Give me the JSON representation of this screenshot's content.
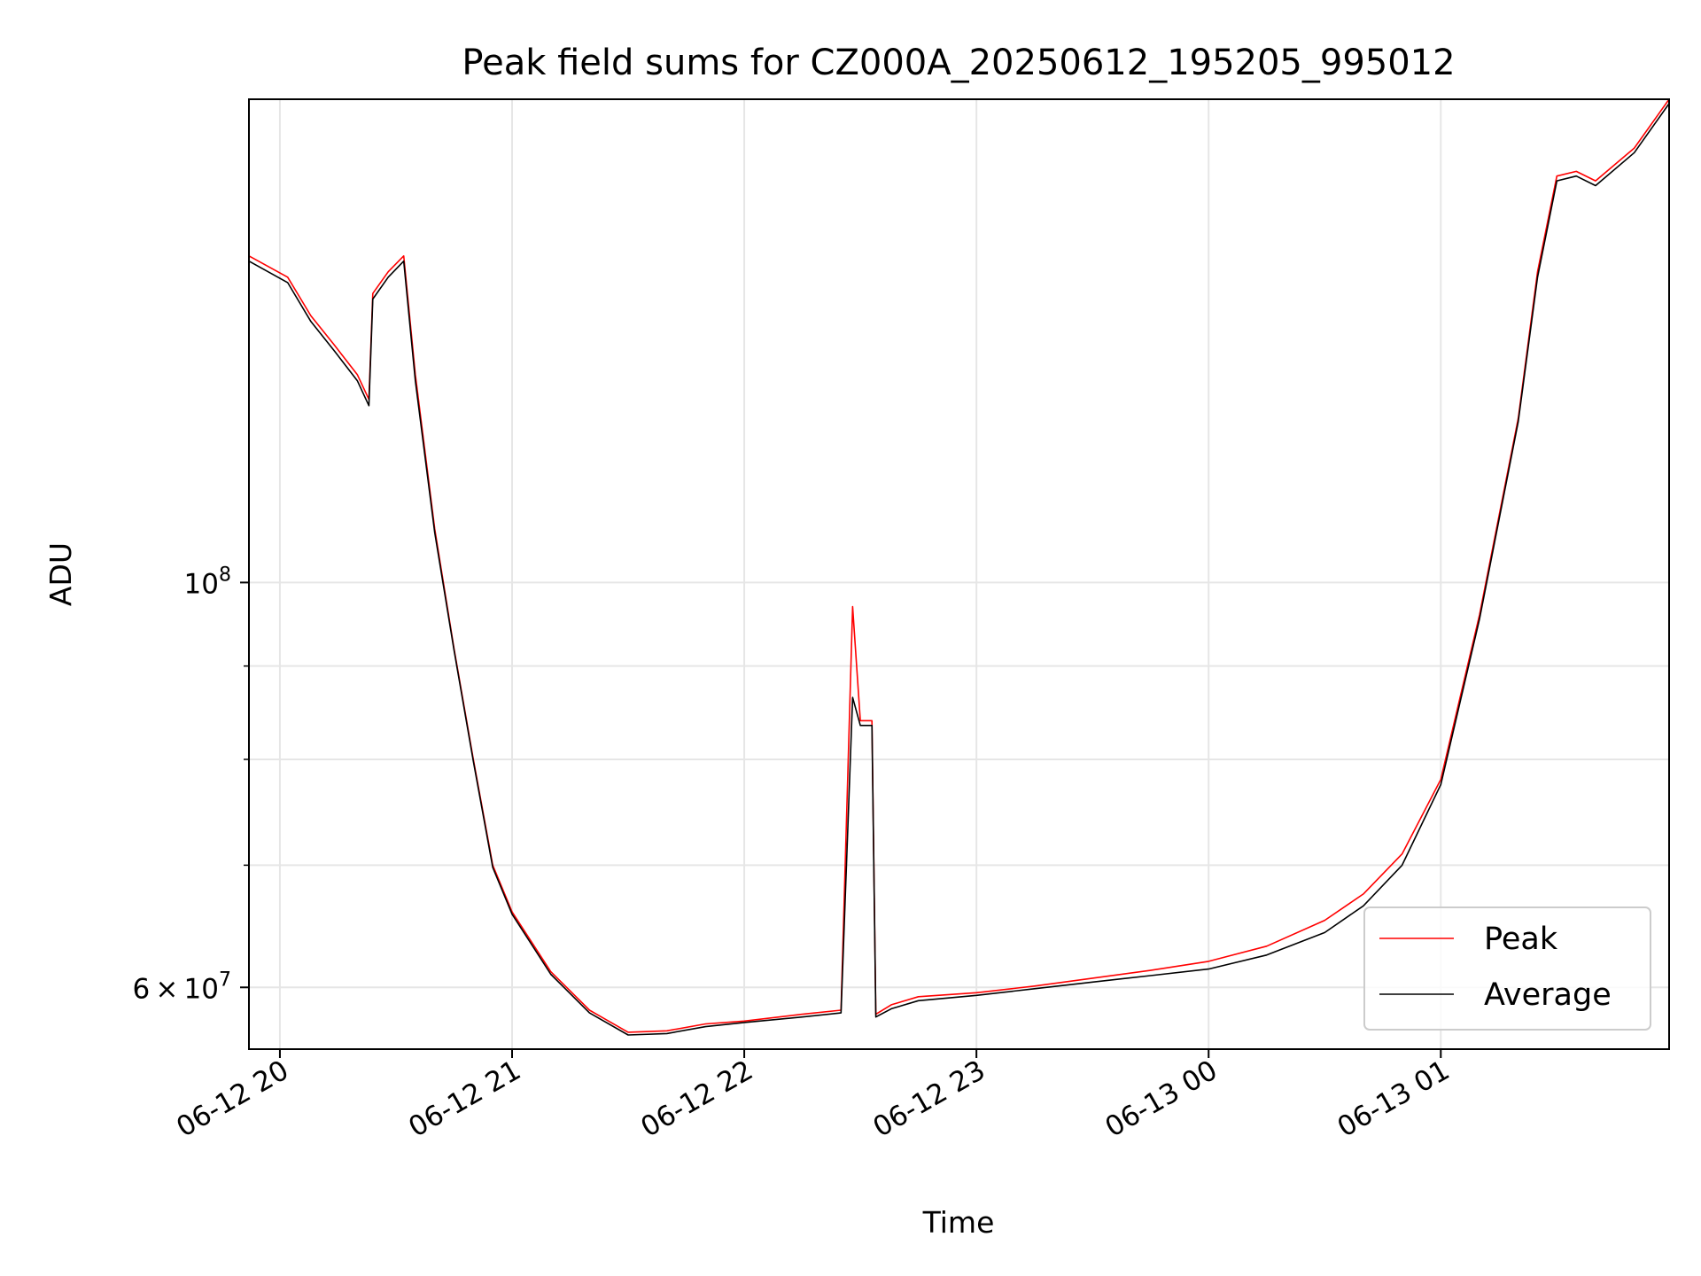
{
  "chart_data": {
    "type": "line",
    "title": "Peak field sums for CZ000A_20250612_195205_995012",
    "xlabel": "Time",
    "ylabel": "ADU",
    "x_scale": "datetime",
    "y_scale": "log",
    "grid": true,
    "legend_position": "lower-right",
    "xlim": [
      "2025-06-12 19:52",
      "2025-06-13 01:59"
    ],
    "ylim": [
      55500000,
      184000000
    ],
    "x_tick_labels": [
      "06-12 20",
      "06-12 21",
      "06-12 22",
      "06-12 23",
      "06-13 00",
      "06-13 01"
    ],
    "x_ticks": [
      "2025-06-12 20:00",
      "2025-06-12 21:00",
      "2025-06-12 22:00",
      "2025-06-12 23:00",
      "2025-06-13 00:00",
      "2025-06-13 01:00"
    ],
    "y_major_ticks": [
      {
        "value": 100000000,
        "label_base": "10",
        "label_exp": "8"
      },
      {
        "value": 60000000,
        "label_base": "6 × 10",
        "label_exp": "7"
      }
    ],
    "y_minor_ticks": [
      70000000,
      80000000,
      90000000
    ],
    "series": [
      {
        "name": "Peak",
        "color": "#ff0000",
        "x": [
          "2025-06-12 19:52",
          "2025-06-12 20:02",
          "2025-06-12 20:08",
          "2025-06-12 20:14",
          "2025-06-12 20:20",
          "2025-06-12 20:23",
          "2025-06-12 20:24",
          "2025-06-12 20:28",
          "2025-06-12 20:32",
          "2025-06-12 20:35",
          "2025-06-12 20:40",
          "2025-06-12 20:45",
          "2025-06-12 20:50",
          "2025-06-12 20:55",
          "2025-06-12 21:00",
          "2025-06-12 21:10",
          "2025-06-12 21:20",
          "2025-06-12 21:30",
          "2025-06-12 21:40",
          "2025-06-12 21:50",
          "2025-06-12 22:00",
          "2025-06-12 22:15",
          "2025-06-12 22:25",
          "2025-06-12 22:28",
          "2025-06-12 22:30",
          "2025-06-12 22:33",
          "2025-06-12 22:34",
          "2025-06-12 22:38",
          "2025-06-12 22:45",
          "2025-06-12 23:00",
          "2025-06-12 23:15",
          "2025-06-12 23:30",
          "2025-06-12 23:45",
          "2025-06-13 00:00",
          "2025-06-13 00:15",
          "2025-06-13 00:30",
          "2025-06-13 00:40",
          "2025-06-13 00:50",
          "2025-06-13 01:00",
          "2025-06-13 01:10",
          "2025-06-13 01:20",
          "2025-06-13 01:25",
          "2025-06-13 01:30",
          "2025-06-13 01:35",
          "2025-06-13 01:40",
          "2025-06-13 01:50",
          "2025-06-13 01:59"
        ],
        "y": [
          151000000,
          147000000,
          140000000,
          135000000,
          130000000,
          126000000,
          144000000,
          148000000,
          151000000,
          130000000,
          107000000,
          92000000,
          80000000,
          70000000,
          66000000,
          61200000,
          58300000,
          56700000,
          56800000,
          57300000,
          57500000,
          58000000,
          58300000,
          97000000,
          84000000,
          84000000,
          58000000,
          58700000,
          59300000,
          59600000,
          60100000,
          60700000,
          61300000,
          62000000,
          63200000,
          65300000,
          67500000,
          71000000,
          78000000,
          96000000,
          123000000,
          148000000,
          167000000,
          168000000,
          166000000,
          173000000,
          184000000
        ]
      },
      {
        "name": "Average",
        "color": "#000000",
        "x": [
          "2025-06-12 19:52",
          "2025-06-12 20:02",
          "2025-06-12 20:08",
          "2025-06-12 20:14",
          "2025-06-12 20:20",
          "2025-06-12 20:23",
          "2025-06-12 20:24",
          "2025-06-12 20:28",
          "2025-06-12 20:32",
          "2025-06-12 20:35",
          "2025-06-12 20:40",
          "2025-06-12 20:45",
          "2025-06-12 20:50",
          "2025-06-12 20:55",
          "2025-06-12 21:00",
          "2025-06-12 21:10",
          "2025-06-12 21:20",
          "2025-06-12 21:30",
          "2025-06-12 21:40",
          "2025-06-12 21:50",
          "2025-06-12 22:00",
          "2025-06-12 22:15",
          "2025-06-12 22:25",
          "2025-06-12 22:28",
          "2025-06-12 22:30",
          "2025-06-12 22:33",
          "2025-06-12 22:34",
          "2025-06-12 22:38",
          "2025-06-12 22:45",
          "2025-06-12 23:00",
          "2025-06-12 23:15",
          "2025-06-12 23:30",
          "2025-06-12 23:45",
          "2025-06-13 00:00",
          "2025-06-13 00:15",
          "2025-06-13 00:30",
          "2025-06-13 00:40",
          "2025-06-13 00:50",
          "2025-06-13 01:00",
          "2025-06-13 01:10",
          "2025-06-13 01:20",
          "2025-06-13 01:25",
          "2025-06-13 01:30",
          "2025-06-13 01:35",
          "2025-06-13 01:40",
          "2025-06-13 01:50",
          "2025-06-13 01:59"
        ],
        "y": [
          150000000,
          146000000,
          139000000,
          134000000,
          129000000,
          125000000,
          143000000,
          147000000,
          150000000,
          129000000,
          106500000,
          91800000,
          79800000,
          69800000,
          65800000,
          61000000,
          58100000,
          56500000,
          56600000,
          57100000,
          57400000,
          57800000,
          58100000,
          86500000,
          83500000,
          83500000,
          57800000,
          58400000,
          59000000,
          59400000,
          59900000,
          60400000,
          60900000,
          61400000,
          62500000,
          64300000,
          66500000,
          70000000,
          77500000,
          95500000,
          122500000,
          147000000,
          166000000,
          167000000,
          165000000,
          172000000,
          183000000
        ]
      }
    ]
  }
}
